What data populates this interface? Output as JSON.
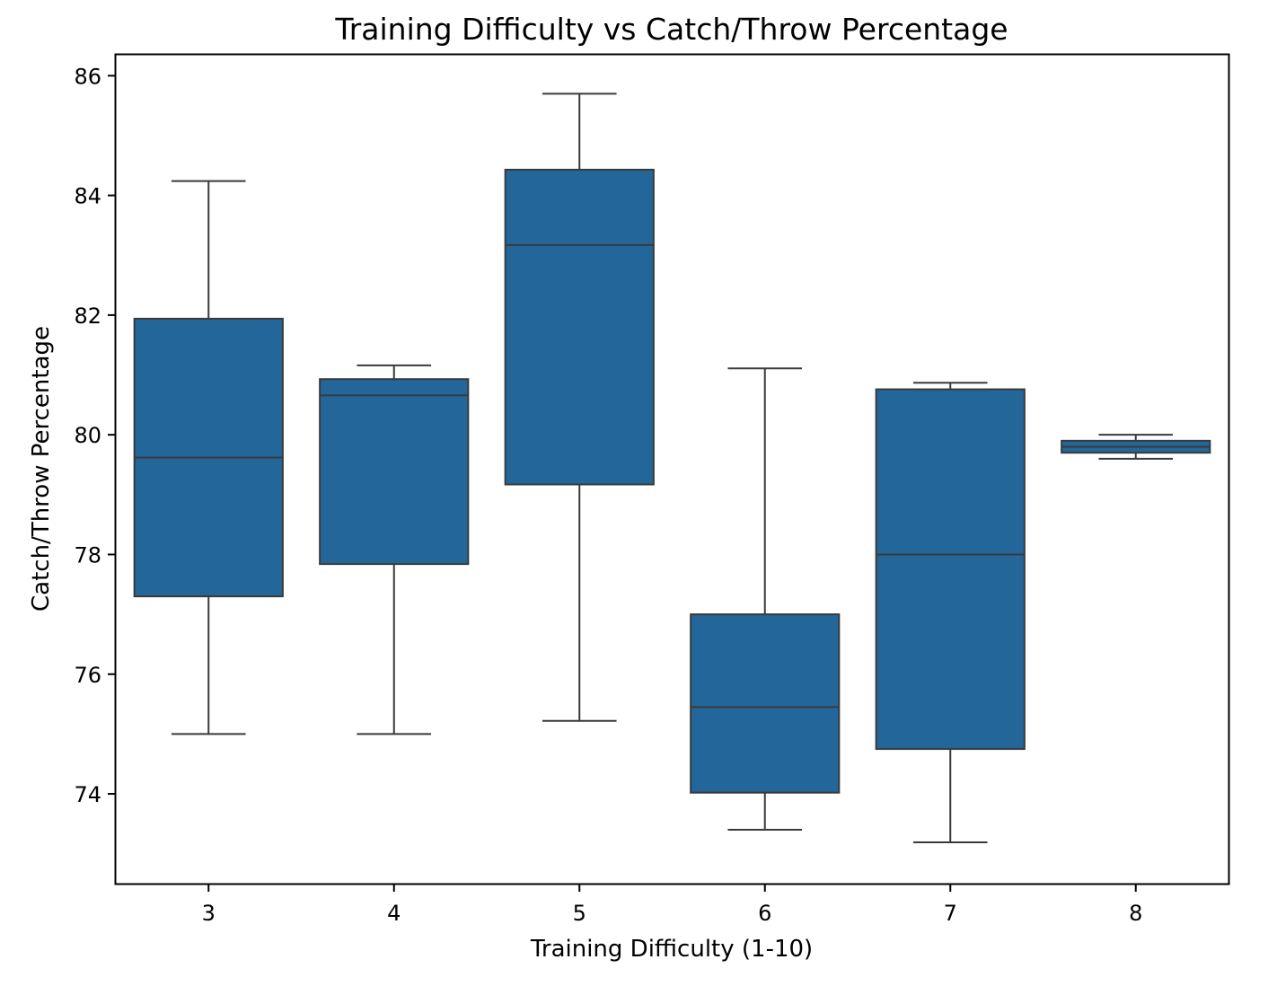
{
  "chart_data": {
    "type": "box",
    "title": "Training Difficulty vs Catch/Throw Percentage",
    "xlabel": "Training Difficulty (1-10)",
    "ylabel": "Catch/Throw Percentage",
    "ylim": [
      72.5,
      86.35
    ],
    "yticks": [
      74,
      76,
      78,
      80,
      82,
      84,
      86
    ],
    "categories": [
      "3",
      "4",
      "5",
      "6",
      "7",
      "8"
    ],
    "grid": false,
    "legend": "none",
    "box_color": "#23669a",
    "line_color": "#3a3a3a",
    "boxes": [
      {
        "category": "3",
        "whisker_low": 75.0,
        "q1": 77.3,
        "median": 79.62,
        "q3": 81.94,
        "whisker_high": 84.24
      },
      {
        "category": "4",
        "whisker_low": 75.0,
        "q1": 77.84,
        "median": 80.66,
        "q3": 80.93,
        "whisker_high": 81.16
      },
      {
        "category": "5",
        "whisker_low": 75.22,
        "q1": 79.17,
        "median": 83.17,
        "q3": 84.43,
        "whisker_high": 85.7
      },
      {
        "category": "6",
        "whisker_low": 73.4,
        "q1": 74.02,
        "median": 75.45,
        "q3": 77.0,
        "whisker_high": 81.11
      },
      {
        "category": "7",
        "whisker_low": 73.19,
        "q1": 74.75,
        "median": 78.0,
        "q3": 80.76,
        "whisker_high": 80.87
      },
      {
        "category": "8",
        "whisker_low": 79.6,
        "q1": 79.7,
        "median": 79.8,
        "q3": 79.9,
        "whisker_high": 80.0
      }
    ]
  }
}
